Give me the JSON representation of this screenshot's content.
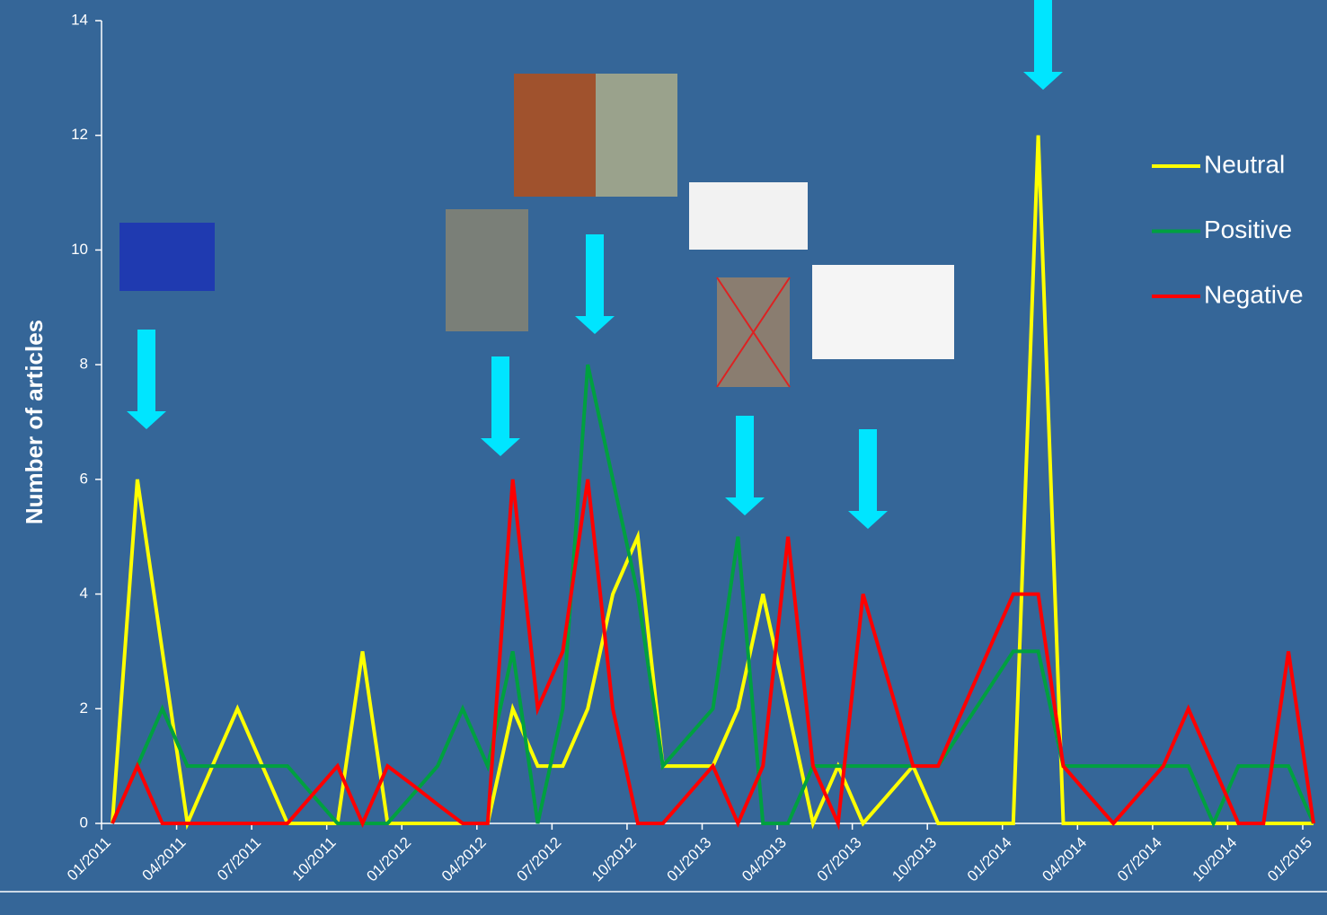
{
  "chart_data": {
    "type": "line",
    "y_label": "Number of articles",
    "categories": [
      "01/2011",
      null,
      null,
      "04/2011",
      null,
      null,
      "07/2011",
      null,
      null,
      "10/2011",
      null,
      null,
      "01/2012",
      null,
      null,
      "04/2012",
      null,
      null,
      "07/2012",
      null,
      null,
      "10/2012",
      null,
      null,
      "01/2013",
      null,
      null,
      "04/2013",
      null,
      null,
      "07/2013",
      null,
      null,
      "10/2013",
      null,
      null,
      "01/2014",
      null,
      null,
      "04/2014",
      null,
      null,
      "07/2014",
      null,
      null,
      "10/2014",
      null,
      null,
      "01/2015"
    ],
    "series": [
      {
        "name": "Neutral",
        "color": "#ffff00",
        "values": [
          0,
          6,
          3,
          0,
          1,
          2,
          1,
          0,
          0,
          0,
          3,
          0,
          0,
          0,
          0,
          0,
          2,
          1,
          1,
          2,
          4,
          5,
          1,
          1,
          1,
          2,
          4,
          2,
          0,
          1,
          0,
          0.5,
          1,
          0,
          0,
          0,
          0,
          12,
          0,
          0,
          0,
          0,
          0,
          0,
          0,
          0,
          0,
          0,
          0
        ]
      },
      {
        "name": "Positive",
        "color": "#00a040",
        "values": [
          0,
          1,
          2,
          1,
          1,
          1,
          1,
          1,
          0.5,
          0,
          0,
          0,
          0.5,
          1,
          2,
          1,
          3,
          0,
          2,
          8,
          6,
          4,
          1,
          1.5,
          2,
          5,
          0,
          0,
          1,
          1,
          1,
          1,
          1,
          1,
          1.67,
          2.33,
          3,
          3,
          1,
          1,
          1,
          1,
          1,
          1,
          0,
          1,
          1,
          1,
          0
        ]
      },
      {
        "name": "Negative",
        "color": "#ff0000",
        "values": [
          0,
          1,
          0,
          0,
          0,
          0,
          0,
          0,
          0.5,
          1,
          0,
          1,
          0.67,
          0.33,
          0,
          0,
          6,
          2,
          3,
          6,
          2,
          0,
          0,
          0.5,
          1,
          0,
          1,
          5,
          1,
          0,
          4,
          2.5,
          1,
          1,
          2,
          3,
          4,
          4,
          1,
          0.5,
          0,
          0.5,
          1,
          2,
          1,
          0,
          0,
          3,
          0
        ]
      }
    ],
    "ylim": [
      0,
      14
    ],
    "yticks": [
      0,
      2,
      4,
      6,
      8,
      10,
      12,
      14
    ]
  }
}
